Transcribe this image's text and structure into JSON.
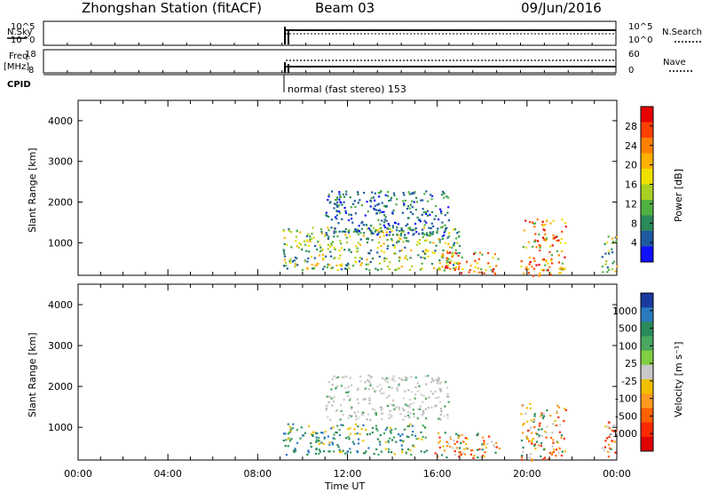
{
  "header": {
    "station": "Zhongshan Station (fitACF)",
    "beam": "Beam 03",
    "date": "09/Jun/2016"
  },
  "strip": {
    "nsky_label": "N.Sky",
    "nsearch_label": "N.Search",
    "noise_ticks_left": [
      "10^5",
      "10^0"
    ],
    "noise_ticks_right": [
      "10^5",
      "10^0"
    ],
    "freq_label_1": "Freq.",
    "freq_label_2": "[MHz]",
    "freq_ticks": [
      "18",
      "8"
    ],
    "nave_label": "Nave",
    "nave_ticks": [
      "60",
      "0"
    ],
    "cpid_label": "CPID",
    "cpid_value": "normal (fast stereo) 153"
  },
  "colorbars": {
    "power": {
      "label": "Power [dB]",
      "ticks": [
        "28",
        "24",
        "20",
        "16",
        "12",
        "8",
        "4"
      ],
      "colors": [
        "#e60000",
        "#ff4000",
        "#ff8000",
        "#ffb000",
        "#f0e000",
        "#a8d020",
        "#50b040",
        "#2a8a5a",
        "#1e5aa0",
        "#1010ff"
      ]
    },
    "velocity": {
      "label": "Velocity [m s⁻¹]",
      "ticks": [
        "1000",
        "500",
        "100",
        "25",
        "-25",
        "-100",
        "-500",
        "-1000"
      ],
      "colors": [
        "#1a3aa0",
        "#2a7abf",
        "#2a8a5a",
        "#4aa860",
        "#80d040",
        "#c8c8c8",
        "#f0c000",
        "#ff9a20",
        "#ff6000",
        "#ff2a00",
        "#e00000"
      ]
    }
  },
  "chart_data": [
    {
      "type": "heatmap",
      "title": "Power",
      "ylabel": "Slant Range [km]",
      "xlabel": "Time UT",
      "xlim_hours": [
        0,
        24
      ],
      "ylim_km": [
        200,
        4500
      ],
      "yticks": [
        "1000",
        "2000",
        "3000",
        "4000"
      ],
      "xticks": [
        "00:00",
        "04:00",
        "08:00",
        "12:00",
        "16:00",
        "20:00",
        "00:00"
      ],
      "data_start_hour": 9.05,
      "echo_regions": [
        {
          "t0": 9.1,
          "t1": 17.0,
          "r0": 350,
          "r1": 1400,
          "level": "mid"
        },
        {
          "t0": 11.0,
          "t1": 16.5,
          "r0": 1200,
          "r1": 2300,
          "level": "low"
        },
        {
          "t0": 16.0,
          "t1": 18.7,
          "r0": 250,
          "r1": 800,
          "level": "high"
        },
        {
          "t0": 19.7,
          "t1": 21.7,
          "r0": 200,
          "r1": 1600,
          "level": "high"
        },
        {
          "t0": 23.3,
          "t1": 24.0,
          "r0": 300,
          "r1": 1200,
          "level": "mid"
        }
      ]
    },
    {
      "type": "heatmap",
      "title": "Velocity",
      "ylabel": "Slant Range [km]",
      "xlabel": "Time UT",
      "xlim_hours": [
        0,
        24
      ],
      "ylim_km": [
        200,
        4500
      ],
      "yticks": [
        "1000",
        "2000",
        "3000",
        "4000"
      ],
      "xticks": [
        "00:00",
        "04:00",
        "08:00",
        "12:00",
        "16:00",
        "20:00",
        "00:00"
      ],
      "data_start_hour": 9.05,
      "echo_regions": [
        {
          "t0": 9.1,
          "t1": 15.5,
          "r0": 350,
          "r1": 1100,
          "level": "green"
        },
        {
          "t0": 11.0,
          "t1": 16.5,
          "r0": 1200,
          "r1": 2300,
          "level": "grey"
        },
        {
          "t0": 15.8,
          "t1": 18.8,
          "r0": 250,
          "r1": 900,
          "level": "orange"
        },
        {
          "t0": 19.7,
          "t1": 21.7,
          "r0": 200,
          "r1": 1600,
          "level": "orange"
        },
        {
          "t0": 23.3,
          "t1": 24.0,
          "r0": 300,
          "r1": 1200,
          "level": "orange"
        }
      ]
    }
  ]
}
